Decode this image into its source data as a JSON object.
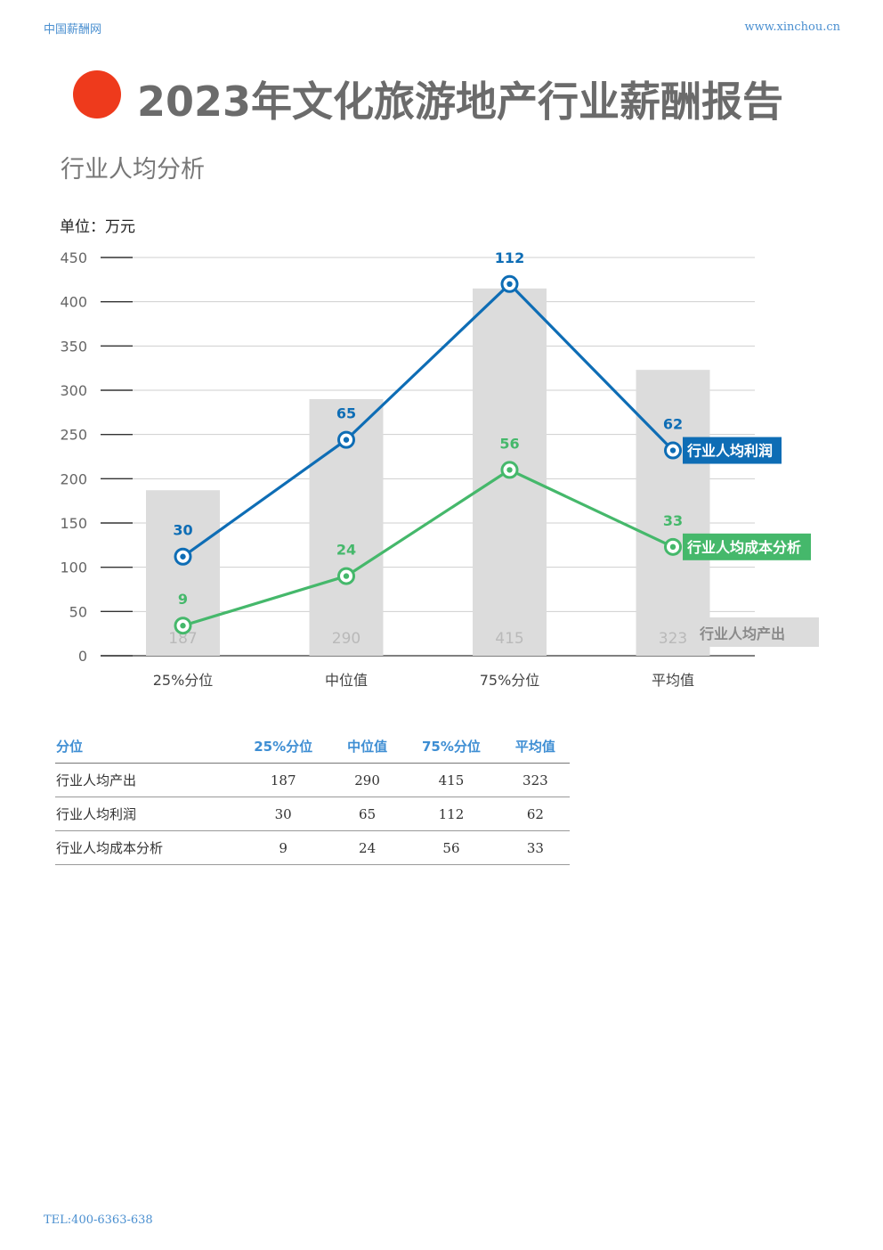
{
  "header": {
    "left": "中国薪酬网",
    "right": "www.xinchou.cn"
  },
  "title": "2023年文化旅游地产行业薪酬报告",
  "subtitle": "行业人均分析",
  "footer": "TEL:400-6363-638",
  "colors": {
    "accent_dot": "#ee3a1c",
    "profit": "#0e6db5",
    "cost": "#45b86b",
    "output": "#dcdcdc",
    "header_text": "#4a8fd0"
  },
  "chart_data": {
    "type": "bar",
    "unit_label": "单位：万元",
    "categories": [
      "25%分位",
      "中位值",
      "75%分位",
      "平均值"
    ],
    "ylim": [
      0,
      450
    ],
    "yticks": [
      0,
      50,
      100,
      150,
      200,
      250,
      300,
      350,
      400,
      450
    ],
    "grid": true,
    "series": [
      {
        "name": "行业人均产出",
        "type": "bar",
        "values": [
          187,
          290,
          415,
          323
        ],
        "color": "#dcdcdc"
      },
      {
        "name": "行业人均利润",
        "type": "line",
        "values": [
          30,
          65,
          112,
          62
        ],
        "plot_y": [
          112,
          244,
          420,
          232
        ],
        "color": "#0e6db5"
      },
      {
        "name": "行业人均成本分析",
        "type": "line",
        "values": [
          9,
          24,
          56,
          33
        ],
        "plot_y": [
          34,
          90,
          210,
          123
        ],
        "color": "#45b86b"
      }
    ]
  },
  "table": {
    "headers": [
      "分位",
      "25%分位",
      "中位值",
      "75%分位",
      "平均值"
    ],
    "rows": [
      [
        "行业人均产出",
        "187",
        "290",
        "415",
        "323"
      ],
      [
        "行业人均利润",
        "30",
        "65",
        "112",
        "62"
      ],
      [
        "行业人均成本分析",
        "9",
        "24",
        "56",
        "33"
      ]
    ]
  }
}
